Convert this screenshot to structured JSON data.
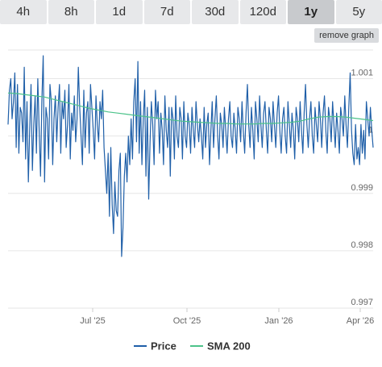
{
  "tabs": [
    {
      "label": "4h",
      "active": false
    },
    {
      "label": "8h",
      "active": false
    },
    {
      "label": "1d",
      "active": false
    },
    {
      "label": "7d",
      "active": false
    },
    {
      "label": "30d",
      "active": false
    },
    {
      "label": "120d",
      "active": false
    },
    {
      "label": "1y",
      "active": true
    },
    {
      "label": "5y",
      "active": false
    }
  ],
  "remove_graph_label": "remove graph",
  "colors": {
    "price": "#1f5fa8",
    "sma": "#4cc38a",
    "grid": "#e6e6e6",
    "tab_bg": "#e7e8ea",
    "tab_active_bg": "#c8cacd"
  },
  "chart_data": {
    "type": "line",
    "title": "",
    "xlabel": "",
    "ylabel": "",
    "x_ticks": [
      "Jul '25",
      "Oct '25",
      "Jan '26",
      "Apr '26"
    ],
    "y_ticks": [
      "1.001",
      "1",
      "0.999",
      "0.998",
      "0.997"
    ],
    "ylim": [
      0.997,
      1.0015
    ],
    "grid": true,
    "legend_position": "bottom-center",
    "series": [
      {
        "name": "Price",
        "color": "#1f5fa8",
        "values": [
          1.0002,
          1.0008,
          1.001,
          1.0003,
          1.0006,
          1.0011,
          0.9998,
          1.0009,
          0.9997,
          1.0005,
          1.0004,
          0.9999,
          1.0012,
          0.9996,
          1.0006,
          0.9992,
          1.0001,
          1.0009,
          0.9994,
          1.0002,
          1.0007,
          0.9997,
          1.001,
          1.0001,
          0.9993,
          1.0006,
          1.0014,
          0.9992,
          1.0005,
          1.0003,
          0.9996,
          1.0009,
          1.0006,
          0.9995,
          1.0003,
          1.0007,
          0.9999,
          1.0005,
          1.0009,
          0.9997,
          1.0006,
          1.0003,
          1.0008,
          0.9998,
          1.0002,
          1.0009,
          0.9996,
          1.0004,
          1.0001,
          1.0007,
          0.9999,
          1.0003,
          1.0012,
          1.0005,
          1.0,
          0.9995,
          1.0008,
          0.9998,
          1.0004,
          1.0006,
          0.9997,
          1.0009,
          1.0005,
          1.0001,
          0.9996,
          1.0007,
          1.0002,
          0.9999,
          1.0006,
          1.0003,
          1.0008,
          0.9998,
          0.9994,
          0.999,
          0.9997,
          0.9986,
          0.9998,
          0.9988,
          0.9983,
          0.9992,
          0.9987,
          0.9986,
          0.9994,
          0.9997,
          0.9979,
          0.9984,
          0.9993,
          0.9997,
          0.9992,
          1.0,
          0.9995,
          1.0003,
          0.9996,
          1.0006,
          1.001,
          0.9999,
          1.0013,
          0.9997,
          1.0006,
          0.9995,
          1.0003,
          1.0008,
          0.9993,
          1.0005,
          0.9989,
          0.9999,
          1.0006,
          1.0002,
          0.9995,
          1.0008,
          1.0003,
          1.0006,
          0.9997,
          1.0004,
          1.0001,
          0.9995,
          1.0007,
          1.0001,
          0.9998,
          1.0005,
          0.9993,
          1.0005,
          1.0003,
          0.9996,
          1.0007,
          1.0,
          0.9998,
          1.0005,
          1.0003,
          0.9996,
          1.0006,
          1.0,
          0.9998,
          1.0004,
          1.0002,
          0.9997,
          1.0005,
          1.0001,
          0.9998,
          1.0006,
          1.0002,
          0.9999,
          1.0003,
          1.0,
          0.9996,
          1.0005,
          0.9998,
          1.0002,
          1.0004,
          0.9995,
          1.0001,
          1.0006,
          0.9998,
          1.0003,
          1.0007,
          1.0,
          0.9996,
          1.0004,
          1.0002,
          0.9998,
          1.0005,
          1.0001,
          0.9997,
          1.0003,
          1.0006,
          1.0,
          0.9998,
          1.0004,
          1.0001,
          0.9997,
          1.0005,
          1.0003,
          0.9999,
          1.0006,
          1.0001,
          0.9997,
          1.0004,
          1.0009,
          1.0002,
          0.9998,
          1.0005,
          1.0001,
          0.9996,
          1.0006,
          1.0003,
          0.9999,
          1.0007,
          1.0002,
          0.9998,
          1.0004,
          1.0006,
          1.0001,
          0.9997,
          1.0005,
          1.0003,
          0.9999,
          1.0006,
          1.0002,
          0.9998,
          1.0004,
          1.0007,
          1.0001,
          0.9997,
          1.0003,
          1.0005,
          1.0,
          0.9997,
          1.0006,
          1.0002,
          0.9998,
          1.0004,
          1.0001,
          0.9996,
          1.0005,
          1.0003,
          0.9999,
          1.0006,
          1.0001,
          0.9997,
          1.0004,
          1.0009,
          1.0002,
          0.9998,
          1.0003,
          1.0006,
          1.0,
          0.9997,
          1.0005,
          1.0002,
          0.9999,
          1.0006,
          1.0003,
          0.9998,
          1.0004,
          1.0007,
          1.0001,
          0.9997,
          1.0005,
          1.0003,
          0.9999,
          1.0006,
          1.0002,
          0.9998,
          1.0004,
          1.0001,
          0.9997,
          1.0005,
          1.0003,
          1.0,
          1.0007,
          1.0002,
          0.9998,
          1.0005,
          1.0011,
          1.0001,
          0.9997,
          0.9995,
          1.0002,
          0.9996,
          0.9998,
          0.9995,
          1.0002,
          0.9997,
          1.0001,
          0.9996,
          1.0006,
          1.0003,
          1.0,
          1.0005,
          1.0001,
          0.9998
        ],
        "x_start": 0,
        "x_end": 1
      },
      {
        "name": "SMA 200",
        "color": "#4cc38a",
        "values": [
          1.00075,
          1.00074,
          1.00072,
          1.0007,
          1.00068,
          1.00064,
          1.0006,
          1.00056,
          1.00052,
          1.00048,
          1.00045,
          1.00042,
          1.0004,
          1.00038,
          1.00036,
          1.00034,
          1.00032,
          1.0003,
          1.00028,
          1.00026,
          1.00025,
          1.00024,
          1.00023,
          1.00022,
          1.00022,
          1.00021,
          1.00021,
          1.00021,
          1.00022,
          1.00022,
          1.00023,
          1.00024,
          1.00026,
          1.0003,
          1.00033,
          1.00034,
          1.00034,
          1.00033,
          1.00031,
          1.00029,
          1.00027
        ],
        "x_start": 0,
        "x_end": 1
      }
    ]
  },
  "legend": [
    {
      "label": "Price"
    },
    {
      "label": "SMA 200"
    }
  ]
}
